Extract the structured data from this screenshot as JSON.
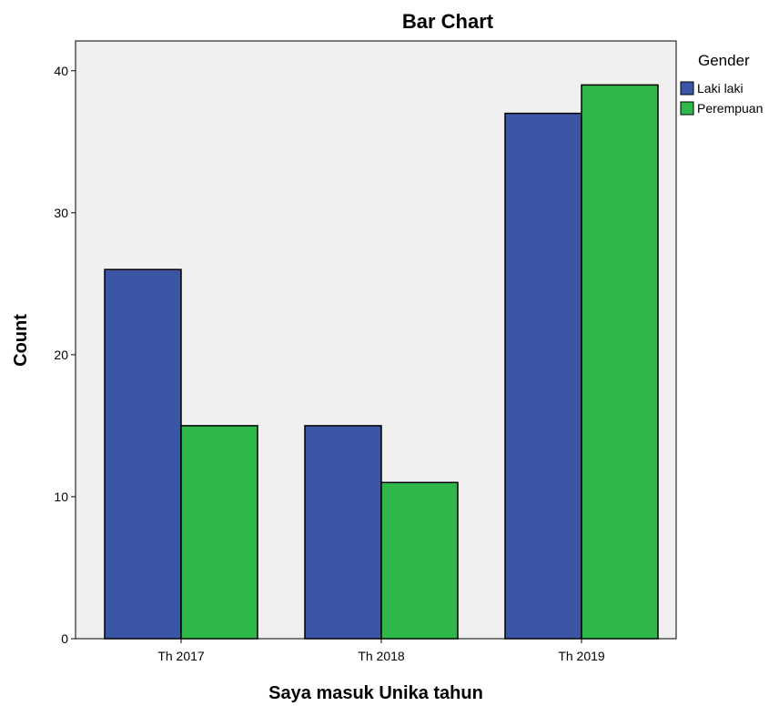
{
  "chart_data": {
    "type": "bar",
    "title": "Bar Chart",
    "xlabel": "Saya masuk Unika tahun",
    "ylabel": "Count",
    "categories": [
      "Th 2017",
      "Th 2018",
      "Th 2019"
    ],
    "series": [
      {
        "name": "Laki laki",
        "values": [
          26,
          15,
          37
        ],
        "color": "#3c56a6"
      },
      {
        "name": "Perempuan",
        "values": [
          15,
          11,
          39
        ],
        "color": "#2eb84a"
      }
    ],
    "ylim": [
      0,
      42.1
    ],
    "yticks": [
      0,
      10,
      20,
      30,
      40
    ],
    "legend": {
      "title": "Gender",
      "position": "right"
    },
    "plot_background": "#f0f0f0",
    "grid": false
  }
}
